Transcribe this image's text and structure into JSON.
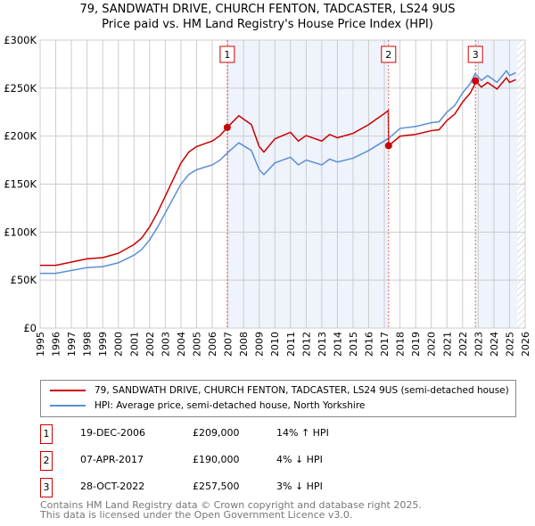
{
  "title": "79, SANDWATH DRIVE, CHURCH FENTON, TADCASTER, LS24 9US",
  "subtitle": "Price paid vs. HM Land Registry's House Price Index (HPI)",
  "chart_data": {
    "type": "line",
    "xlim": [
      1995,
      2026
    ],
    "ylim": [
      0,
      300000
    ],
    "yticks": [
      {
        "v": 0,
        "label": "£0"
      },
      {
        "v": 50000,
        "label": "£50K"
      },
      {
        "v": 100000,
        "label": "£100K"
      },
      {
        "v": 150000,
        "label": "£150K"
      },
      {
        "v": 200000,
        "label": "£200K"
      },
      {
        "v": 250000,
        "label": "£250K"
      },
      {
        "v": 300000,
        "label": "£300K"
      }
    ],
    "xticks": [
      "1995",
      "1996",
      "1997",
      "1998",
      "1999",
      "2000",
      "2001",
      "2002",
      "2003",
      "2004",
      "2005",
      "2006",
      "2007",
      "2008",
      "2009",
      "2010",
      "2011",
      "2012",
      "2013",
      "2014",
      "2015",
      "2016",
      "2017",
      "2018",
      "2019",
      "2020",
      "2021",
      "2022",
      "2023",
      "2024",
      "2025",
      "2026"
    ],
    "hpi": {
      "name": "HPI: Average price, semi-detached house, North Yorkshire",
      "color": "#5b8fd6",
      "x": [
        1995,
        1996,
        1997,
        1998,
        1999,
        2000,
        2001,
        2001.5,
        2002,
        2002.5,
        2003,
        2003.5,
        2004,
        2004.5,
        2005,
        2006,
        2006.5,
        2007,
        2007.7,
        2008.5,
        2009,
        2009.3,
        2010,
        2011,
        2011.5,
        2012,
        2013,
        2013.5,
        2014,
        2015,
        2016,
        2016.5,
        2017,
        2017.3,
        2018,
        2019,
        2020,
        2020.5,
        2021,
        2021.5,
        2022,
        2022.5,
        2022.8,
        2023.2,
        2023.6,
        2024.2,
        2024.8,
        2025,
        2025.4
      ],
      "y": [
        57000,
        57000,
        60000,
        63000,
        64000,
        68000,
        76000,
        82000,
        92000,
        105000,
        120000,
        135000,
        150000,
        160000,
        165000,
        170000,
        175000,
        183000,
        193000,
        185000,
        165000,
        160000,
        172000,
        178000,
        170000,
        175000,
        170000,
        176000,
        173000,
        177000,
        185000,
        190000,
        195000,
        198000,
        208000,
        210000,
        214000,
        215000,
        225000,
        232000,
        245000,
        255000,
        265000,
        258000,
        263000,
        256000,
        268000,
        263000,
        266000
      ]
    },
    "property": {
      "name": "79, SANDWATH DRIVE, CHURCH FENTON, TADCASTER, LS24 9US (semi-detached house)",
      "color": "#cc0000"
    },
    "sales": [
      {
        "n": "1",
        "x": 2006.96,
        "date": "19-DEC-2006",
        "price": "£209,000",
        "value": 209000,
        "hpi": "14% ↑ HPI"
      },
      {
        "n": "2",
        "x": 2017.27,
        "date": "07-APR-2017",
        "price": "£190,000",
        "value": 190000,
        "hpi": "4% ↓ HPI"
      },
      {
        "n": "3",
        "x": 2022.82,
        "date": "28-OCT-2022",
        "price": "£257,500",
        "value": 257500,
        "hpi": "3% ↓ HPI"
      }
    ]
  },
  "footer": {
    "line1": "Contains HM Land Registry data © Crown copyright and database right 2025.",
    "line2": "This data is licensed under the Open Government Licence v3.0."
  }
}
